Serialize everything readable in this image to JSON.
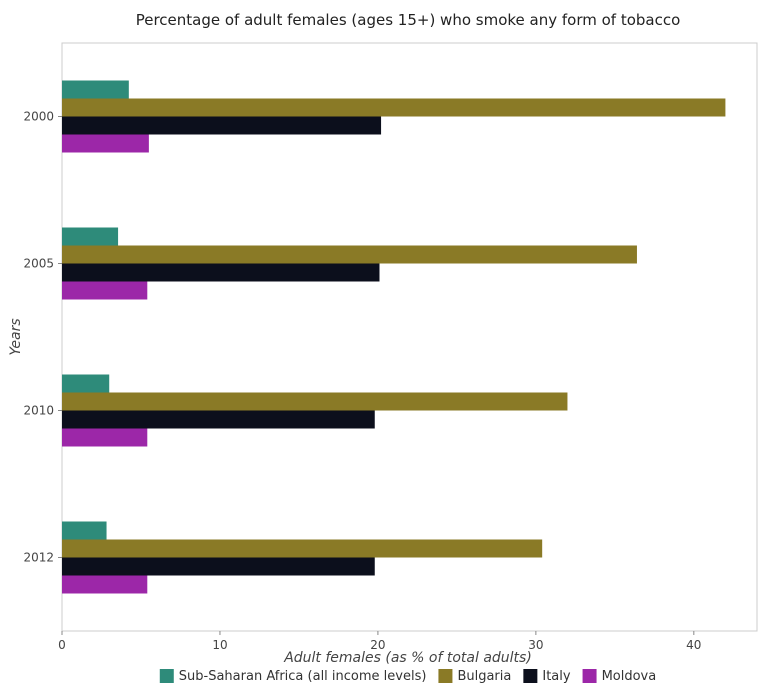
{
  "chart_data": {
    "type": "bar",
    "orientation": "horizontal",
    "title": "Percentage of adult females (ages 15+) who smoke any form of tobacco",
    "xlabel": "Adult females (as % of total adults)",
    "ylabel": "Years",
    "categories": [
      "2000",
      "2005",
      "2010",
      "2012"
    ],
    "xlim": [
      0,
      44
    ],
    "xticks": [
      0,
      10,
      20,
      30,
      40
    ],
    "grid": false,
    "legend_position": "bottom",
    "series": [
      {
        "name": "Sub-Saharan Africa (all income levels)",
        "color": "#2e8b7a",
        "values": [
          4.23,
          3.55,
          2.99,
          2.82
        ]
      },
      {
        "name": "Bulgaria",
        "color": "#8a7a26",
        "values": [
          42.0,
          36.4,
          32.0,
          30.4
        ]
      },
      {
        "name": "Italy",
        "color": "#0c0f1c",
        "values": [
          20.2,
          20.1,
          19.8,
          19.8
        ]
      },
      {
        "name": "Moldova",
        "color": "#9c27a8",
        "values": [
          5.5,
          5.4,
          5.4,
          5.4
        ]
      }
    ]
  }
}
